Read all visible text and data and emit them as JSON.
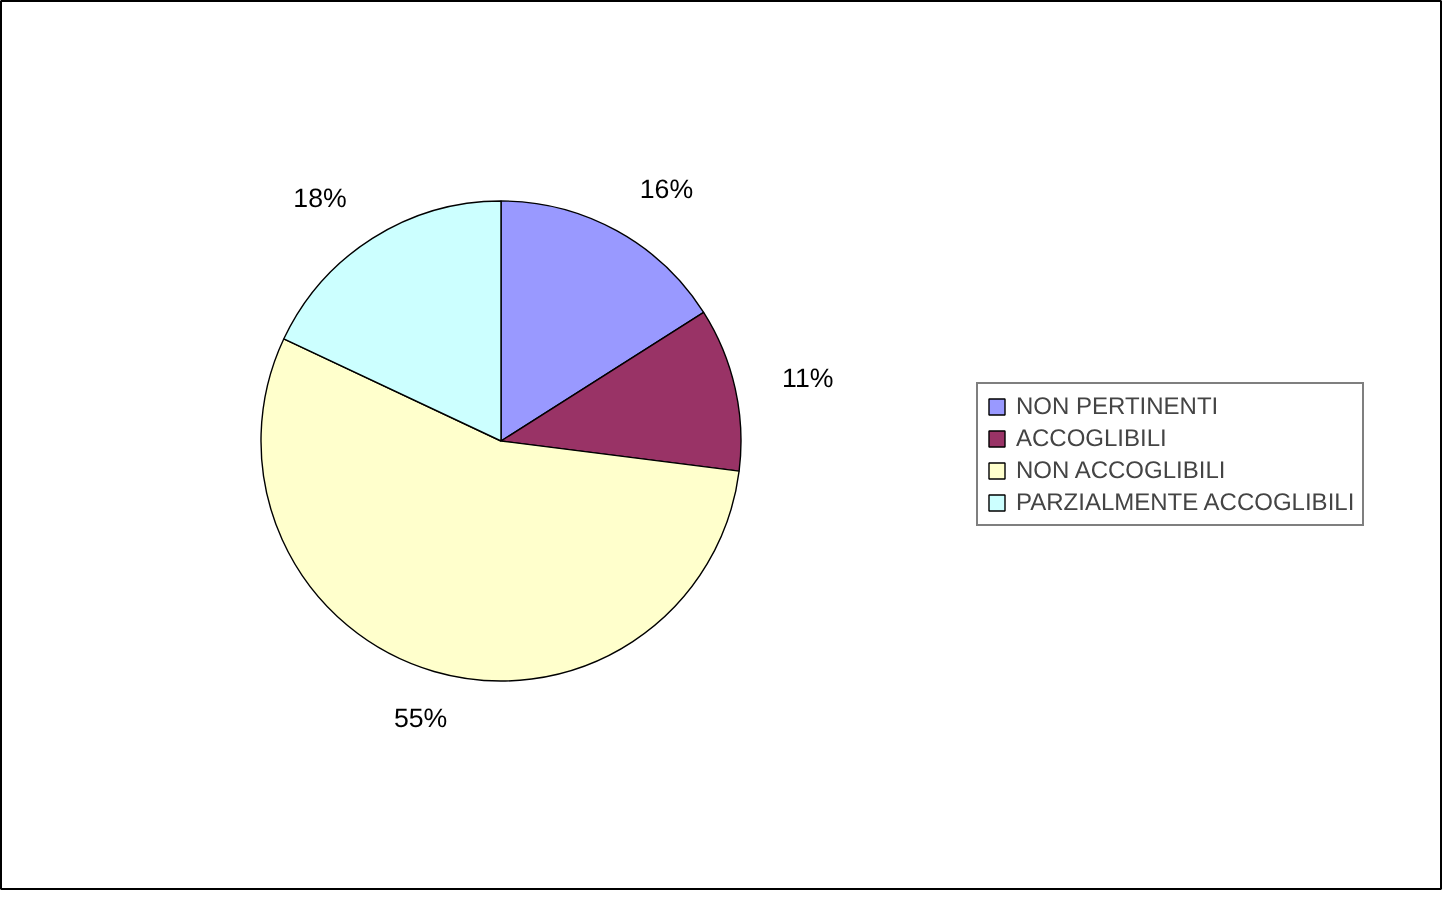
{
  "chart_data": {
    "type": "pie",
    "categories": [
      "NON PERTINENTI",
      "ACCOGLIBILI",
      "NON ACCOGLIBILI",
      "PARZIALMENTE ACCOGLIBILI"
    ],
    "values": [
      16,
      11,
      55,
      18
    ],
    "colors": [
      "#9999ff",
      "#993366",
      "#ffffcc",
      "#ccffff"
    ],
    "value_labels": [
      "16%",
      "11%",
      "55%",
      "18%"
    ],
    "legend": "right"
  }
}
